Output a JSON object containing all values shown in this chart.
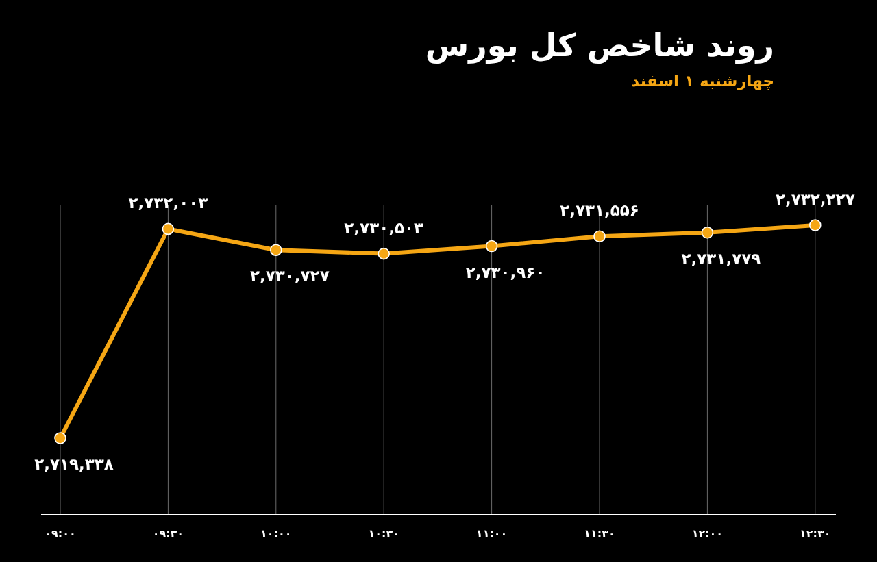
{
  "chart_data": {
    "type": "line",
    "title": "روند شاخص کل بورس",
    "subtitle": "چهارشنبه ۱ اسفند",
    "categories": [
      "۰۹:۰۰",
      "۰۹:۳۰",
      "۱۰:۰۰",
      "۱۰:۳۰",
      "۱۱:۰۰",
      "۱۱:۳۰",
      "۱۲:۰۰",
      "۱۲:۳۰"
    ],
    "values": [
      2719338,
      2732003,
      2730727,
      2730503,
      2730960,
      2731556,
      2731779,
      2732227
    ],
    "value_labels": [
      "۲,۷۱۹,۳۳۸",
      "۲,۷۳۲,۰۰۳",
      "۲,۷۳۰,۷۲۷",
      "۲,۷۳۰,۵۰۳",
      "۲,۷۳۰,۹۶۰",
      "۲,۷۳۱,۵۵۶",
      "۲,۷۳۱,۷۷۹",
      "۲,۷۳۲,۲۲۷"
    ],
    "color": "#f5a614",
    "marker": "circle",
    "line_style": "solid",
    "grid": "x",
    "tick_labels": "x"
  }
}
